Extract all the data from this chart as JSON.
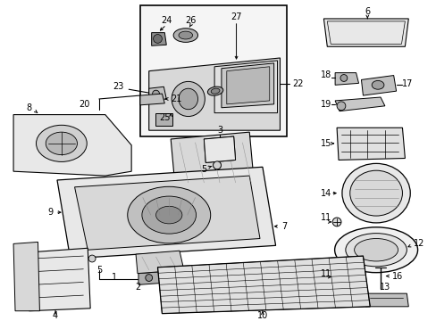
{
  "bg_color": "#ffffff",
  "fig_width": 4.89,
  "fig_height": 3.6,
  "dpi": 100,
  "line_color": "#000000",
  "text_color": "#000000",
  "font_size": 7.0
}
